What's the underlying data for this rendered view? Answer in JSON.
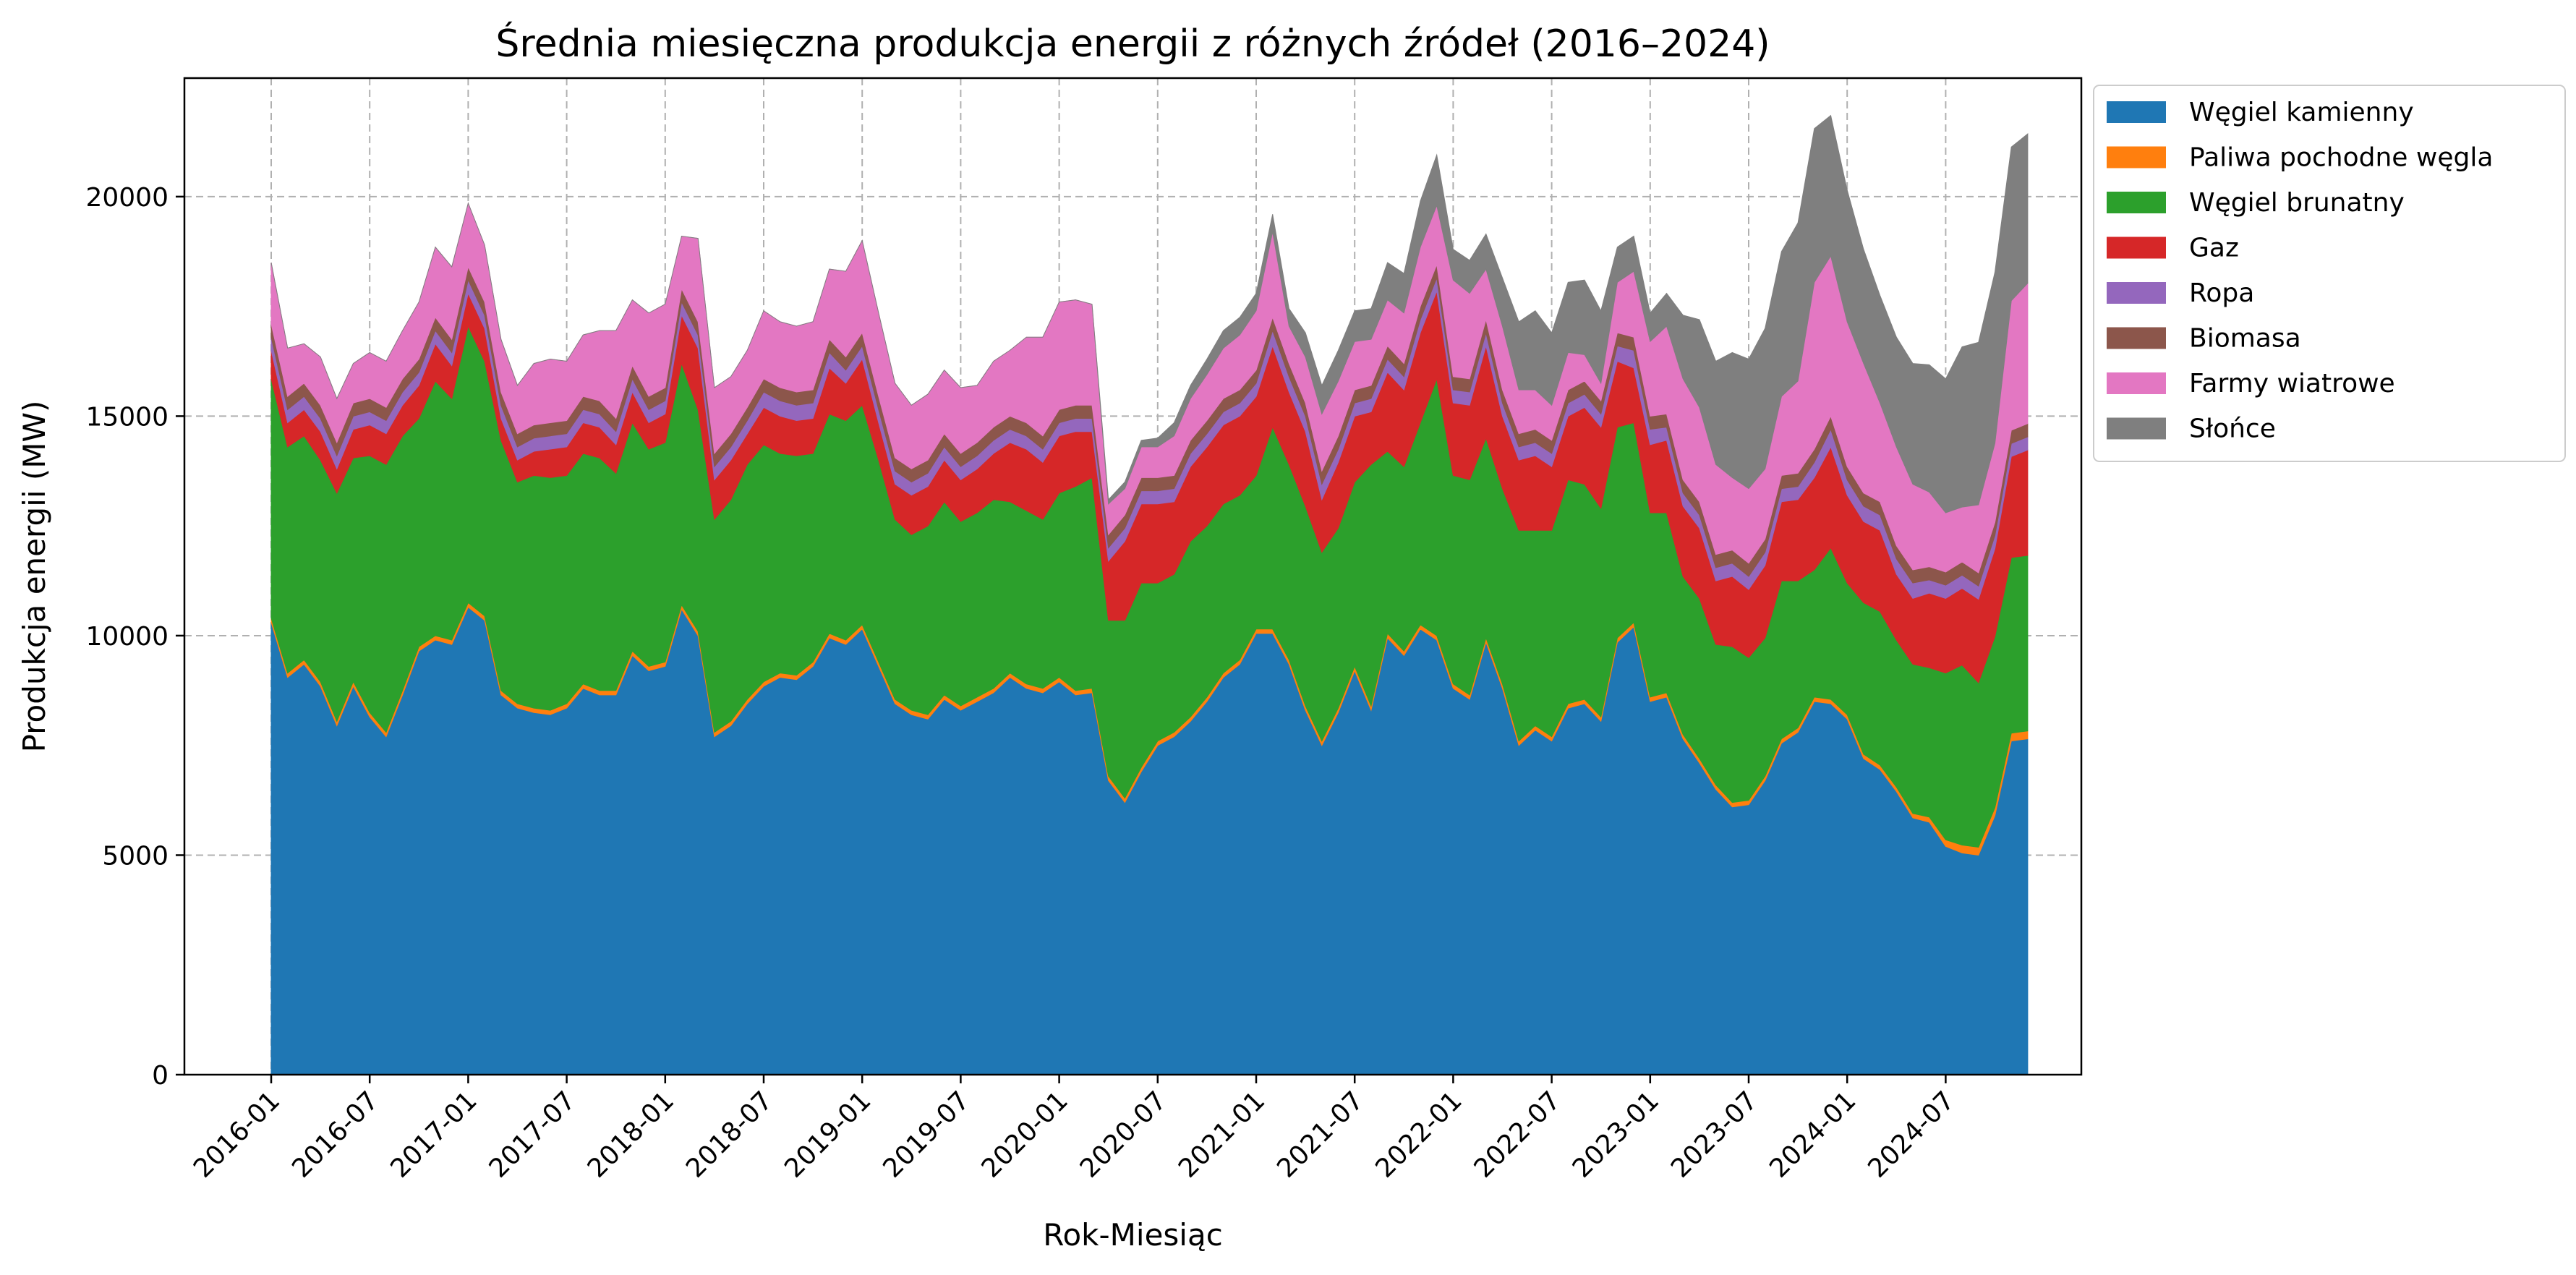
{
  "chart_data": {
    "type": "area",
    "stacked": true,
    "title": "Średnia miesięczna produkcja energii z różnych źródeł (2016–2024)",
    "xlabel": "Rok-Miesiąc",
    "ylabel": "Produkcja energii (MW)",
    "ylim": [
      0,
      22700
    ],
    "yticks": [
      0,
      5000,
      10000,
      15000,
      20000
    ],
    "xticks": [
      "2016-01",
      "2016-07",
      "2017-01",
      "2017-07",
      "2018-01",
      "2018-07",
      "2019-01",
      "2019-07",
      "2020-01",
      "2020-07",
      "2021-01",
      "2021-07",
      "2022-01",
      "2022-07",
      "2023-01",
      "2023-07",
      "2024-01",
      "2024-07"
    ],
    "x_start": "2016-01",
    "grid": true,
    "legend_position": "outside-top-right",
    "anchor_months": [
      0,
      1,
      2,
      3,
      4,
      5,
      6,
      7,
      8,
      9,
      10,
      11,
      12,
      13,
      14,
      15,
      16,
      17,
      18,
      19,
      20,
      21,
      22,
      23,
      24,
      25,
      26,
      27,
      28,
      29,
      30,
      31,
      32,
      33,
      34,
      35,
      36,
      37,
      38,
      39,
      40,
      41,
      42,
      43,
      44,
      45,
      46,
      47,
      48,
      49,
      50,
      51,
      52,
      53,
      54,
      55,
      56,
      57,
      58,
      59,
      60,
      61,
      62,
      63,
      64,
      65,
      66,
      67,
      68,
      69,
      70,
      71,
      72,
      73,
      74,
      75,
      76,
      77,
      78,
      79,
      80,
      81,
      82,
      83,
      84,
      85,
      86,
      87,
      88,
      89,
      90,
      91,
      92,
      93,
      94,
      95,
      96,
      97,
      98,
      99,
      100,
      101,
      102,
      103,
      104,
      105,
      106,
      107
    ],
    "series": [
      {
        "name": "Węgiel kamienny",
        "color": "#1f77b4",
        "values": [
          10300,
          9050,
          9350,
          8850,
          7950,
          8850,
          8150,
          7700,
          8650,
          9650,
          9900,
          9800,
          10650,
          10350,
          8650,
          8350,
          8250,
          8200,
          8350,
          8800,
          8650,
          8650,
          9550,
          9200,
          9300,
          10600,
          10000,
          7700,
          7950,
          8450,
          8850,
          9050,
          9000,
          9300,
          9950,
          9800,
          10150,
          9300,
          8450,
          8200,
          8100,
          8550,
          8300,
          8500,
          8700,
          9050,
          8800,
          8700,
          8950,
          8650,
          8700,
          6700,
          6200,
          6900,
          7500,
          7700,
          8050,
          8500,
          9050,
          9350,
          10050,
          10050,
          9350,
          8300,
          7500,
          8250,
          9200,
          8300,
          9950,
          9550,
          10150,
          9900,
          8800,
          8550,
          9850,
          8800,
          7500,
          7850,
          7600,
          8350,
          8450,
          8050,
          9850,
          10200,
          8500,
          8600,
          7650,
          7100,
          6500,
          6100,
          6150,
          6700,
          7550,
          7800,
          8500,
          8450,
          8100,
          7200,
          6950,
          6450,
          5850,
          5750,
          5200,
          5050,
          5000,
          5900,
          7600,
          7650
        ],
        "note": ""
      },
      {
        "name": "Paliwa pochodne węgla",
        "color": "#ff7f0e",
        "values": [
          100,
          100,
          100,
          100,
          100,
          100,
          100,
          100,
          100,
          100,
          100,
          100,
          100,
          100,
          100,
          100,
          100,
          100,
          100,
          100,
          100,
          100,
          100,
          100,
          100,
          100,
          100,
          100,
          100,
          100,
          100,
          100,
          100,
          100,
          100,
          100,
          100,
          100,
          100,
          100,
          100,
          100,
          100,
          100,
          100,
          100,
          100,
          100,
          100,
          100,
          100,
          100,
          100,
          100,
          100,
          100,
          100,
          100,
          100,
          100,
          100,
          100,
          100,
          100,
          100,
          100,
          100,
          100,
          100,
          100,
          100,
          100,
          100,
          100,
          100,
          100,
          100,
          100,
          100,
          100,
          100,
          100,
          100,
          100,
          100,
          100,
          100,
          100,
          100,
          100,
          100,
          100,
          100,
          100,
          100,
          100,
          100,
          100,
          100,
          100,
          100,
          120,
          150,
          180,
          180,
          180,
          180,
          180
        ]
      },
      {
        "name": "Węgiel brunatny",
        "color": "#2ca02c",
        "values": [
          5450,
          5150,
          5100,
          5050,
          5200,
          5100,
          5850,
          6100,
          5800,
          5200,
          5800,
          5500,
          6300,
          5800,
          5700,
          5050,
          5300,
          5300,
          5200,
          5250,
          5300,
          4950,
          5200,
          4950,
          5000,
          5500,
          5050,
          4850,
          5050,
          5350,
          5400,
          5000,
          5000,
          4750,
          5000,
          5000,
          5000,
          4600,
          4100,
          4000,
          4300,
          4400,
          4200,
          4200,
          4300,
          3900,
          3950,
          3850,
          4200,
          4650,
          4800,
          3550,
          4050,
          4200,
          3600,
          3600,
          4000,
          3900,
          3850,
          3750,
          3500,
          4600,
          4450,
          4550,
          4300,
          4100,
          4200,
          5500,
          4150,
          4200,
          4600,
          5850,
          4750,
          4900,
          4550,
          4450,
          4800,
          4450,
          4700,
          5100,
          4900,
          4750,
          4800,
          4550,
          4200,
          4100,
          3600,
          3650,
          3200,
          3550,
          3250,
          3150,
          3600,
          3350,
          2900,
          3450,
          3000,
          3450,
          3500,
          3350,
          3400,
          3400,
          3800,
          4100,
          3750,
          3900,
          4000,
          4000
        ],
        "note": ""
      },
      {
        "name": "Gaz",
        "color": "#d62728",
        "values": [
          650,
          550,
          600,
          650,
          550,
          650,
          700,
          700,
          700,
          750,
          850,
          750,
          750,
          750,
          500,
          500,
          550,
          650,
          650,
          700,
          700,
          650,
          700,
          600,
          650,
          1100,
          1400,
          900,
          900,
          700,
          850,
          850,
          800,
          800,
          1050,
          850,
          1050,
          850,
          800,
          900,
          900,
          950,
          950,
          1000,
          1050,
          1350,
          1400,
          1300,
          1300,
          1250,
          1050,
          1350,
          1800,
          1800,
          1800,
          1650,
          1700,
          1800,
          1800,
          1800,
          1800,
          1850,
          1650,
          1700,
          1200,
          1500,
          1500,
          1200,
          1800,
          1750,
          2050,
          2000,
          1650,
          1700,
          2100,
          1650,
          1600,
          1700,
          1450,
          1450,
          1750,
          1850,
          1500,
          1250,
          1550,
          1650,
          1600,
          1600,
          1450,
          1600,
          1550,
          1650,
          1800,
          1850,
          2100,
          2300,
          2000,
          1850,
          1850,
          1500,
          1500,
          1700,
          1700,
          1750,
          1900,
          2000,
          2300,
          2400
        ]
      },
      {
        "name": "Ropa",
        "color": "#9467bd",
        "values": [
          300,
          300,
          300,
          300,
          300,
          300,
          300,
          300,
          300,
          300,
          300,
          300,
          300,
          300,
          300,
          300,
          300,
          300,
          300,
          300,
          300,
          300,
          300,
          300,
          300,
          300,
          300,
          300,
          300,
          300,
          350,
          350,
          350,
          350,
          350,
          300,
          300,
          300,
          300,
          300,
          300,
          300,
          300,
          300,
          300,
          300,
          300,
          300,
          300,
          300,
          300,
          300,
          300,
          300,
          300,
          300,
          300,
          300,
          300,
          300,
          300,
          350,
          350,
          350,
          350,
          300,
          300,
          300,
          300,
          300,
          300,
          300,
          300,
          300,
          300,
          300,
          300,
          300,
          300,
          300,
          300,
          300,
          350,
          400,
          350,
          300,
          300,
          300,
          300,
          300,
          300,
          300,
          300,
          300,
          350,
          400,
          350,
          350,
          350,
          350,
          350,
          300,
          300,
          300,
          300,
          300,
          300,
          300
        ]
      },
      {
        "name": "Biomasa",
        "color": "#8c564b",
        "values": [
          300,
          300,
          300,
          300,
          300,
          300,
          300,
          300,
          300,
          300,
          300,
          300,
          300,
          300,
          300,
          300,
          300,
          300,
          300,
          300,
          300,
          300,
          300,
          300,
          300,
          300,
          300,
          300,
          300,
          300,
          300,
          300,
          300,
          300,
          300,
          300,
          300,
          300,
          300,
          300,
          300,
          300,
          300,
          300,
          300,
          300,
          300,
          300,
          300,
          300,
          300,
          300,
          300,
          300,
          300,
          300,
          300,
          300,
          300,
          300,
          300,
          300,
          300,
          300,
          300,
          300,
          300,
          300,
          300,
          300,
          300,
          300,
          300,
          300,
          300,
          300,
          300,
          300,
          300,
          300,
          300,
          300,
          300,
          300,
          300,
          300,
          300,
          300,
          300,
          300,
          300,
          300,
          300,
          300,
          300,
          300,
          300,
          300,
          300,
          300,
          300,
          300,
          300,
          300,
          300,
          300,
          300,
          300
        ]
      },
      {
        "name": "Farmy wiatrowe",
        "color": "#e377c2",
        "values": [
          1400,
          1100,
          900,
          1100,
          1000,
          900,
          1050,
          1050,
          1100,
          1300,
          1600,
          1650,
          1450,
          1300,
          1200,
          1100,
          1400,
          1450,
          1350,
          1400,
          1600,
          2000,
          1500,
          1900,
          1900,
          1200,
          1900,
          1500,
          1300,
          1300,
          1550,
          1500,
          1500,
          1550,
          1600,
          1950,
          2100,
          1900,
          1700,
          1450,
          1500,
          1450,
          1500,
          1300,
          1500,
          1500,
          1950,
          2250,
          2450,
          2400,
          2300,
          700,
          600,
          700,
          700,
          900,
          950,
          1050,
          1150,
          1250,
          1350,
          1950,
          850,
          1050,
          1300,
          1250,
          1100,
          1050,
          1050,
          1150,
          1350,
          1350,
          2200,
          1950,
          1150,
          1450,
          1000,
          900,
          800,
          850,
          600,
          400,
          1150,
          1500,
          1700,
          2000,
          2300,
          2150,
          2050,
          1650,
          1700,
          1600,
          1800,
          2100,
          3800,
          3650,
          3300,
          2950,
          2250,
          2250,
          1950,
          1700,
          1350,
          1250,
          1550,
          1800,
          2950,
          3200
        ]
      },
      {
        "name": "Słońce",
        "color": "#7f7f7f",
        "values": [
          0,
          0,
          0,
          0,
          0,
          0,
          0,
          0,
          0,
          0,
          0,
          0,
          0,
          0,
          0,
          0,
          0,
          0,
          0,
          0,
          0,
          0,
          0,
          0,
          0,
          0,
          0,
          0,
          0,
          0,
          0,
          0,
          0,
          0,
          0,
          0,
          0,
          0,
          0,
          0,
          0,
          0,
          0,
          0,
          0,
          0,
          0,
          0,
          0,
          0,
          0,
          100,
          150,
          150,
          200,
          300,
          300,
          350,
          400,
          400,
          400,
          400,
          400,
          550,
          650,
          700,
          700,
          700,
          850,
          900,
          1050,
          1150,
          700,
          750,
          800,
          1100,
          1550,
          1800,
          1650,
          1600,
          1700,
          1650,
          800,
          800,
          650,
          750,
          1450,
          2000,
          2350,
          2850,
          2950,
          3200,
          3300,
          3600,
          3500,
          3200,
          3000,
          2600,
          2450,
          2500,
          2750,
          2900,
          3050,
          3650,
          3700,
          3900,
          3500,
          3400
        ]
      }
    ]
  }
}
